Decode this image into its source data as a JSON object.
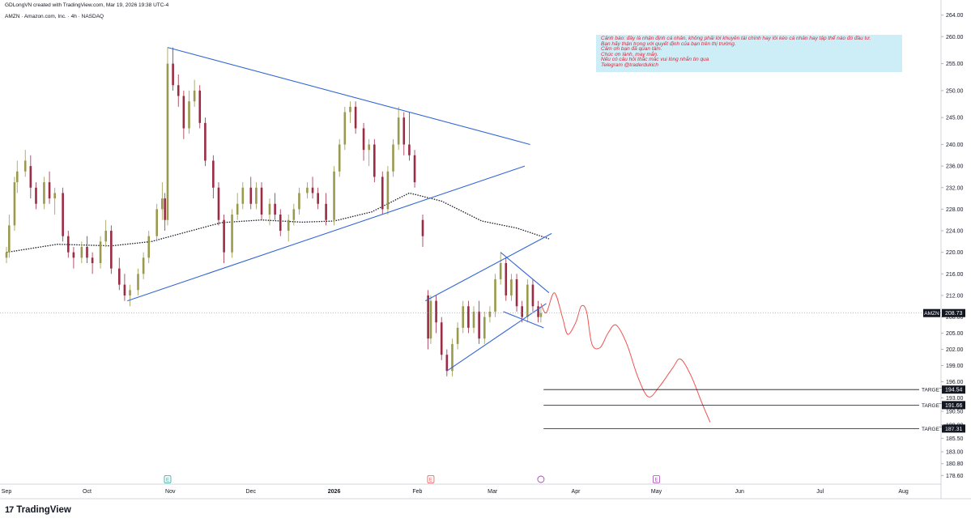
{
  "header": {
    "created_by": "GDLongVN created with TradingView.com, Mar 19, 2026 19:38 UTC-4",
    "symbol_line": "AMZN · Amazon.com, Inc. · 4h · NASDAQ"
  },
  "branding": {
    "logo_mark": "17",
    "name": "TradingView"
  },
  "note": {
    "lines": [
      "Cảnh báo: đây là nhận định cá nhân, không phải lời khuyên tài chính hay lôi kéo cá nhân hay tập thể nào đó đầu tư.",
      "Bạn hãy thận trọng với quyết định của bạn trên thị trường.",
      "Cảm ơn bạn đã quan tâm.",
      "Chúc ơn lành, may mắn.",
      "Nếu có câu hỏi thắc mắc vui lòng nhắn tin qua",
      "Telegram @traderdukich"
    ],
    "bg_color": "#cdeef6",
    "text_color": "#d9263b"
  },
  "chart_data": {
    "type": "candlestick",
    "symbol": "AMZN",
    "interval": "4h",
    "exchange": "NASDAQ",
    "last_price": 208.73,
    "last_price_label": "208.73",
    "ylim": [
      177.0,
      265.0
    ],
    "y_ticks": [
      "264.00",
      "260.00",
      "255.00",
      "250.00",
      "245.00",
      "240.00",
      "236.00",
      "232.00",
      "228.00",
      "224.00",
      "220.00",
      "216.00",
      "212.00",
      "208.00",
      "205.00",
      "202.00",
      "199.00",
      "196.00",
      "193.00",
      "190.50",
      "188.00",
      "185.50",
      "183.00",
      "180.80",
      "178.60"
    ],
    "x_ticks": [
      {
        "label": "Sep",
        "date": "2025-09-01"
      },
      {
        "label": "Oct",
        "date": "2025-10-01"
      },
      {
        "label": "Nov",
        "date": "2025-11-01"
      },
      {
        "label": "Dec",
        "date": "2025-12-01"
      },
      {
        "label": "2026",
        "date": "2026-01-01"
      },
      {
        "label": "Feb",
        "date": "2026-02-01"
      },
      {
        "label": "Mar",
        "date": "2026-03-01"
      },
      {
        "label": "Apr",
        "date": "2026-04-01"
      },
      {
        "label": "May",
        "date": "2026-05-01"
      },
      {
        "label": "Jun",
        "date": "2026-06-01"
      },
      {
        "label": "Jul",
        "date": "2026-07-01"
      },
      {
        "label": "Aug",
        "date": "2026-08-01"
      }
    ],
    "targets": [
      {
        "label": "TARGET",
        "value": 194.54,
        "value_label": "194.54"
      },
      {
        "label": "TARGET",
        "value": 191.66,
        "value_label": "191.66"
      },
      {
        "label": "TARGET",
        "value": 187.31,
        "value_label": "187.31"
      }
    ],
    "event_markers": [
      {
        "label": "E",
        "date": "2025-10-31",
        "color": "#26a69a"
      },
      {
        "label": "E",
        "date": "2026-02-06",
        "color": "#ef5350"
      },
      {
        "label": "E",
        "date": "2026-05-01",
        "color": "#ab47bc"
      }
    ],
    "colors": {
      "up": "#9a9a4e",
      "down": "#9c2b44",
      "trendline": "#3366d6",
      "moving_average": "#131722",
      "projection": "#ef5350"
    },
    "candles": [
      {
        "date": "2025-09-01",
        "o": 219,
        "h": 221,
        "l": 218,
        "c": 220
      },
      {
        "date": "2025-09-02",
        "o": 220,
        "h": 227,
        "l": 219,
        "c": 225
      },
      {
        "date": "2025-09-04",
        "o": 225,
        "h": 234,
        "l": 224,
        "c": 233
      },
      {
        "date": "2025-09-05",
        "o": 233,
        "h": 237,
        "l": 231,
        "c": 235
      },
      {
        "date": "2025-09-08",
        "o": 235,
        "h": 239,
        "l": 234,
        "c": 237
      },
      {
        "date": "2025-09-10",
        "o": 236,
        "h": 238,
        "l": 230,
        "c": 232
      },
      {
        "date": "2025-09-12",
        "o": 232,
        "h": 233,
        "l": 228,
        "c": 229
      },
      {
        "date": "2025-09-15",
        "o": 229,
        "h": 234,
        "l": 228,
        "c": 233
      },
      {
        "date": "2025-09-17",
        "o": 233,
        "h": 235,
        "l": 229,
        "c": 230
      },
      {
        "date": "2025-09-19",
        "o": 230,
        "h": 232,
        "l": 227,
        "c": 231
      },
      {
        "date": "2025-09-22",
        "o": 231,
        "h": 232,
        "l": 222,
        "c": 223
      },
      {
        "date": "2025-09-24",
        "o": 223,
        "h": 224,
        "l": 219,
        "c": 220
      },
      {
        "date": "2025-09-26",
        "o": 220,
        "h": 221,
        "l": 217,
        "c": 219
      },
      {
        "date": "2025-09-29",
        "o": 219,
        "h": 222,
        "l": 218,
        "c": 221
      },
      {
        "date": "2025-10-01",
        "o": 221,
        "h": 223,
        "l": 218,
        "c": 219
      },
      {
        "date": "2025-10-03",
        "o": 219,
        "h": 220,
        "l": 216,
        "c": 218
      },
      {
        "date": "2025-10-06",
        "o": 218,
        "h": 223,
        "l": 217,
        "c": 222
      },
      {
        "date": "2025-10-08",
        "o": 222,
        "h": 226,
        "l": 221,
        "c": 224
      },
      {
        "date": "2025-10-10",
        "o": 224,
        "h": 225,
        "l": 216,
        "c": 217
      },
      {
        "date": "2025-10-13",
        "o": 217,
        "h": 219,
        "l": 213,
        "c": 214
      },
      {
        "date": "2025-10-15",
        "o": 214,
        "h": 216,
        "l": 211,
        "c": 212
      },
      {
        "date": "2025-10-17",
        "o": 212,
        "h": 214,
        "l": 210,
        "c": 213
      },
      {
        "date": "2025-10-20",
        "o": 213,
        "h": 217,
        "l": 212,
        "c": 216
      },
      {
        "date": "2025-10-22",
        "o": 216,
        "h": 220,
        "l": 215,
        "c": 219
      },
      {
        "date": "2025-10-24",
        "o": 219,
        "h": 224,
        "l": 218,
        "c": 223
      },
      {
        "date": "2025-10-27",
        "o": 223,
        "h": 229,
        "l": 222,
        "c": 228
      },
      {
        "date": "2025-10-29",
        "o": 228,
        "h": 233,
        "l": 226,
        "c": 230
      },
      {
        "date": "2025-10-30",
        "o": 230,
        "h": 231,
        "l": 224,
        "c": 226
      },
      {
        "date": "2025-10-31",
        "o": 226,
        "h": 258,
        "l": 225,
        "c": 255
      },
      {
        "date": "2025-11-02",
        "o": 255,
        "h": 258,
        "l": 250,
        "c": 251
      },
      {
        "date": "2025-11-04",
        "o": 251,
        "h": 253,
        "l": 247,
        "c": 249
      },
      {
        "date": "2025-11-06",
        "o": 249,
        "h": 250,
        "l": 241,
        "c": 243
      },
      {
        "date": "2025-11-08",
        "o": 243,
        "h": 250,
        "l": 242,
        "c": 248
      },
      {
        "date": "2025-11-10",
        "o": 248,
        "h": 252,
        "l": 247,
        "c": 250
      },
      {
        "date": "2025-11-12",
        "o": 250,
        "h": 251,
        "l": 243,
        "c": 244
      },
      {
        "date": "2025-11-14",
        "o": 244,
        "h": 245,
        "l": 236,
        "c": 237
      },
      {
        "date": "2025-11-17",
        "o": 237,
        "h": 238,
        "l": 230,
        "c": 232
      },
      {
        "date": "2025-11-19",
        "o": 232,
        "h": 233,
        "l": 225,
        "c": 226
      },
      {
        "date": "2025-11-21",
        "o": 226,
        "h": 227,
        "l": 218,
        "c": 220
      },
      {
        "date": "2025-11-24",
        "o": 220,
        "h": 228,
        "l": 219,
        "c": 227
      },
      {
        "date": "2025-11-26",
        "o": 227,
        "h": 231,
        "l": 226,
        "c": 229
      },
      {
        "date": "2025-11-28",
        "o": 229,
        "h": 233,
        "l": 228,
        "c": 232
      },
      {
        "date": "2025-12-01",
        "o": 232,
        "h": 234,
        "l": 228,
        "c": 229
      },
      {
        "date": "2025-12-03",
        "o": 229,
        "h": 233,
        "l": 228,
        "c": 232
      },
      {
        "date": "2025-12-05",
        "o": 232,
        "h": 233,
        "l": 226,
        "c": 227
      },
      {
        "date": "2025-12-08",
        "o": 227,
        "h": 230,
        "l": 225,
        "c": 229
      },
      {
        "date": "2025-12-10",
        "o": 229,
        "h": 231,
        "l": 226,
        "c": 227
      },
      {
        "date": "2025-12-12",
        "o": 227,
        "h": 228,
        "l": 223,
        "c": 224
      },
      {
        "date": "2025-12-15",
        "o": 224,
        "h": 227,
        "l": 222,
        "c": 226
      },
      {
        "date": "2025-12-17",
        "o": 226,
        "h": 229,
        "l": 225,
        "c": 228
      },
      {
        "date": "2025-12-19",
        "o": 228,
        "h": 232,
        "l": 227,
        "c": 231
      },
      {
        "date": "2025-12-22",
        "o": 231,
        "h": 233,
        "l": 230,
        "c": 232
      },
      {
        "date": "2025-12-24",
        "o": 232,
        "h": 234,
        "l": 230,
        "c": 231
      },
      {
        "date": "2025-12-26",
        "o": 231,
        "h": 232,
        "l": 228,
        "c": 229
      },
      {
        "date": "2025-12-29",
        "o": 229,
        "h": 231,
        "l": 225,
        "c": 226
      },
      {
        "date": "2026-01-01",
        "o": 226,
        "h": 236,
        "l": 225,
        "c": 235
      },
      {
        "date": "2026-01-03",
        "o": 235,
        "h": 241,
        "l": 234,
        "c": 240
      },
      {
        "date": "2026-01-05",
        "o": 240,
        "h": 247,
        "l": 239,
        "c": 246
      },
      {
        "date": "2026-01-07",
        "o": 246,
        "h": 248,
        "l": 244,
        "c": 247
      },
      {
        "date": "2026-01-09",
        "o": 247,
        "h": 248,
        "l": 242,
        "c": 243
      },
      {
        "date": "2026-01-12",
        "o": 243,
        "h": 244,
        "l": 237,
        "c": 239
      },
      {
        "date": "2026-01-14",
        "o": 239,
        "h": 241,
        "l": 236,
        "c": 240
      },
      {
        "date": "2026-01-16",
        "o": 240,
        "h": 241,
        "l": 233,
        "c": 234
      },
      {
        "date": "2026-01-19",
        "o": 234,
        "h": 235,
        "l": 227,
        "c": 228
      },
      {
        "date": "2026-01-21",
        "o": 228,
        "h": 236,
        "l": 227,
        "c": 235
      },
      {
        "date": "2026-01-23",
        "o": 235,
        "h": 241,
        "l": 234,
        "c": 240
      },
      {
        "date": "2026-01-25",
        "o": 240,
        "h": 247,
        "l": 239,
        "c": 245
      },
      {
        "date": "2026-01-27",
        "o": 245,
        "h": 246,
        "l": 238,
        "c": 240
      },
      {
        "date": "2026-01-29",
        "o": 240,
        "h": 246,
        "l": 237,
        "c": 238
      },
      {
        "date": "2026-01-31",
        "o": 238,
        "h": 239,
        "l": 232,
        "c": 233
      },
      {
        "date": "2026-02-03",
        "o": 226,
        "h": 227,
        "l": 221,
        "c": 223
      },
      {
        "date": "2026-02-05",
        "o": 212,
        "h": 213,
        "l": 202,
        "c": 204
      },
      {
        "date": "2026-02-06",
        "o": 204,
        "h": 212,
        "l": 203,
        "c": 211
      },
      {
        "date": "2026-02-08",
        "o": 211,
        "h": 212,
        "l": 205,
        "c": 207
      },
      {
        "date": "2026-02-10",
        "o": 207,
        "h": 208,
        "l": 200,
        "c": 201
      },
      {
        "date": "2026-02-12",
        "o": 201,
        "h": 202,
        "l": 197,
        "c": 198
      },
      {
        "date": "2026-02-14",
        "o": 198,
        "h": 204,
        "l": 197,
        "c": 203
      },
      {
        "date": "2026-02-16",
        "o": 203,
        "h": 207,
        "l": 202,
        "c": 206
      },
      {
        "date": "2026-02-18",
        "o": 206,
        "h": 211,
        "l": 205,
        "c": 210
      },
      {
        "date": "2026-02-20",
        "o": 210,
        "h": 211,
        "l": 205,
        "c": 206
      },
      {
        "date": "2026-02-22",
        "o": 206,
        "h": 210,
        "l": 205,
        "c": 209
      },
      {
        "date": "2026-02-24",
        "o": 209,
        "h": 211,
        "l": 203,
        "c": 204
      },
      {
        "date": "2026-02-26",
        "o": 204,
        "h": 209,
        "l": 203,
        "c": 208
      },
      {
        "date": "2026-02-28",
        "o": 208,
        "h": 210,
        "l": 207,
        "c": 209
      },
      {
        "date": "2026-03-02",
        "o": 209,
        "h": 216,
        "l": 208,
        "c": 215
      },
      {
        "date": "2026-03-04",
        "o": 215,
        "h": 220,
        "l": 214,
        "c": 218
      },
      {
        "date": "2026-03-06",
        "o": 218,
        "h": 219,
        "l": 211,
        "c": 212
      },
      {
        "date": "2026-03-08",
        "o": 212,
        "h": 216,
        "l": 211,
        "c": 215
      },
      {
        "date": "2026-03-10",
        "o": 215,
        "h": 216,
        "l": 209,
        "c": 210
      },
      {
        "date": "2026-03-12",
        "o": 210,
        "h": 211,
        "l": 207,
        "c": 208
      },
      {
        "date": "2026-03-14",
        "o": 208,
        "h": 215,
        "l": 207,
        "c": 214
      },
      {
        "date": "2026-03-16",
        "o": 214,
        "h": 215,
        "l": 209,
        "c": 210
      },
      {
        "date": "2026-03-18",
        "o": 210,
        "h": 211,
        "l": 207,
        "c": 208
      },
      {
        "date": "2026-03-19",
        "o": 208,
        "h": 210,
        "l": 207,
        "c": 208.73
      }
    ],
    "moving_average": [
      {
        "date": "2025-09-01",
        "v": 220
      },
      {
        "date": "2025-09-20",
        "v": 221.5
      },
      {
        "date": "2025-10-10",
        "v": 221.2
      },
      {
        "date": "2025-10-25",
        "v": 222
      },
      {
        "date": "2025-11-05",
        "v": 223.5
      },
      {
        "date": "2025-11-20",
        "v": 225.5
      },
      {
        "date": "2025-12-05",
        "v": 226
      },
      {
        "date": "2025-12-20",
        "v": 225.6
      },
      {
        "date": "2026-01-01",
        "v": 225.8
      },
      {
        "date": "2026-01-15",
        "v": 227.5
      },
      {
        "date": "2026-01-29",
        "v": 231
      },
      {
        "date": "2026-02-10",
        "v": 229.5
      },
      {
        "date": "2026-02-25",
        "v": 225.8
      },
      {
        "date": "2026-03-10",
        "v": 224.5
      },
      {
        "date": "2026-03-22",
        "v": 222.5
      }
    ],
    "trendlines": [
      {
        "name": "triangle-upper",
        "p1": {
          "date": "2025-10-31",
          "v": 258
        },
        "p2": {
          "date": "2026-03-15",
          "v": 240
        }
      },
      {
        "name": "triangle-lower",
        "p1": {
          "date": "2025-10-16",
          "v": 211
        },
        "p2": {
          "date": "2026-03-13",
          "v": 236
        }
      },
      {
        "name": "channel-upper",
        "p1": {
          "date": "2026-02-04",
          "v": 211
        },
        "p2": {
          "date": "2026-03-23",
          "v": 223.5
        }
      },
      {
        "name": "channel-lower",
        "p1": {
          "date": "2026-02-12",
          "v": 198
        },
        "p2": {
          "date": "2026-03-21",
          "v": 210.5
        }
      },
      {
        "name": "flag-upper",
        "p1": {
          "date": "2026-03-04",
          "v": 220
        },
        "p2": {
          "date": "2026-03-22",
          "v": 212.5
        }
      },
      {
        "name": "flag-lower",
        "p1": {
          "date": "2026-03-05",
          "v": 209
        },
        "p2": {
          "date": "2026-03-20",
          "v": 206
        }
      }
    ],
    "projection": [
      {
        "date": "2026-03-19",
        "v": 210.5
      },
      {
        "date": "2026-03-21",
        "v": 208.8
      },
      {
        "date": "2026-03-24",
        "v": 212.5
      },
      {
        "date": "2026-03-27",
        "v": 208
      },
      {
        "date": "2026-03-29",
        "v": 204.8
      },
      {
        "date": "2026-04-01",
        "v": 207
      },
      {
        "date": "2026-04-03",
        "v": 210
      },
      {
        "date": "2026-04-05",
        "v": 209
      },
      {
        "date": "2026-04-07",
        "v": 203
      },
      {
        "date": "2026-04-10",
        "v": 202.3
      },
      {
        "date": "2026-04-13",
        "v": 205
      },
      {
        "date": "2026-04-16",
        "v": 206.5
      },
      {
        "date": "2026-04-20",
        "v": 203
      },
      {
        "date": "2026-04-24",
        "v": 197
      },
      {
        "date": "2026-04-28",
        "v": 193.2
      },
      {
        "date": "2026-05-02",
        "v": 195
      },
      {
        "date": "2026-05-07",
        "v": 198.5
      },
      {
        "date": "2026-05-10",
        "v": 200.2
      },
      {
        "date": "2026-05-14",
        "v": 197
      },
      {
        "date": "2026-05-18",
        "v": 192
      },
      {
        "date": "2026-05-21",
        "v": 188.5
      }
    ]
  }
}
